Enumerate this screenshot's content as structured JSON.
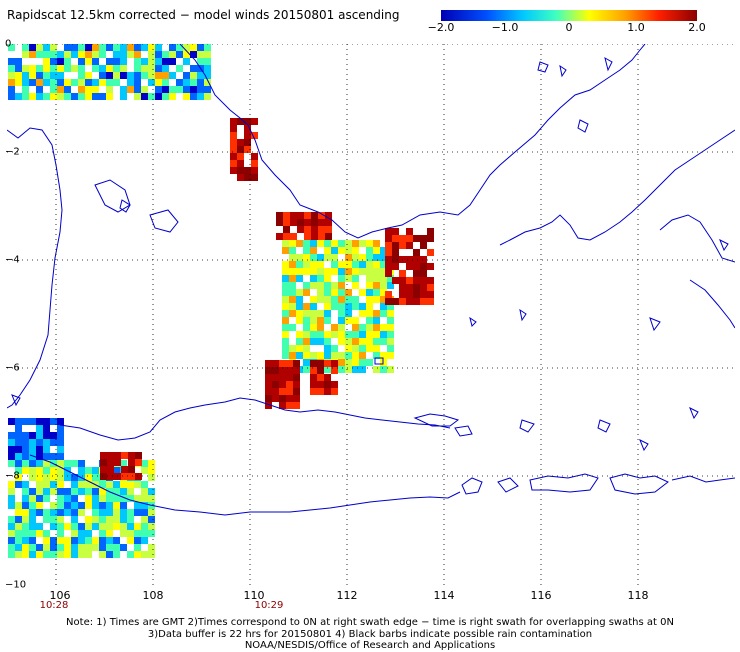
{
  "title": "Rapidscat 12.5km corrected − model winds 20150801 ascending",
  "colorbar": {
    "ticks": [
      "−2.0",
      "−1.0",
      "0",
      "1.0",
      "2.0"
    ],
    "range": [
      -2.0,
      2.0
    ],
    "colors": [
      "#0000c8",
      "#0064ff",
      "#00c8ff",
      "#40ffb0",
      "#c8ff40",
      "#ffff00",
      "#ffa000",
      "#ff3000",
      "#b00000",
      "#8b0000"
    ]
  },
  "map": {
    "lat_labels": [
      "0",
      "−2",
      "−4",
      "−6",
      "−8",
      "−10"
    ],
    "lon_labels": [
      "106",
      "108",
      "110",
      "112",
      "114",
      "116",
      "118"
    ],
    "time_labels": [
      {
        "text": "10:28",
        "lon": 106
      },
      {
        "text": "10:29",
        "lon": 110
      }
    ],
    "coastline_color": "#0000cc",
    "grid_style": "dotted"
  },
  "notes": {
    "line1": "Note: 1) Times are GMT 2)Times correspond to 0N at right swath edge − time is right swath for overlapping swaths at 0N",
    "line2": "3)Data buffer is 22 hrs for 20150801 4) Black barbs indicate possible rain contamination",
    "line3": "NOAA/NESDIS/Office of Research and Applications"
  }
}
